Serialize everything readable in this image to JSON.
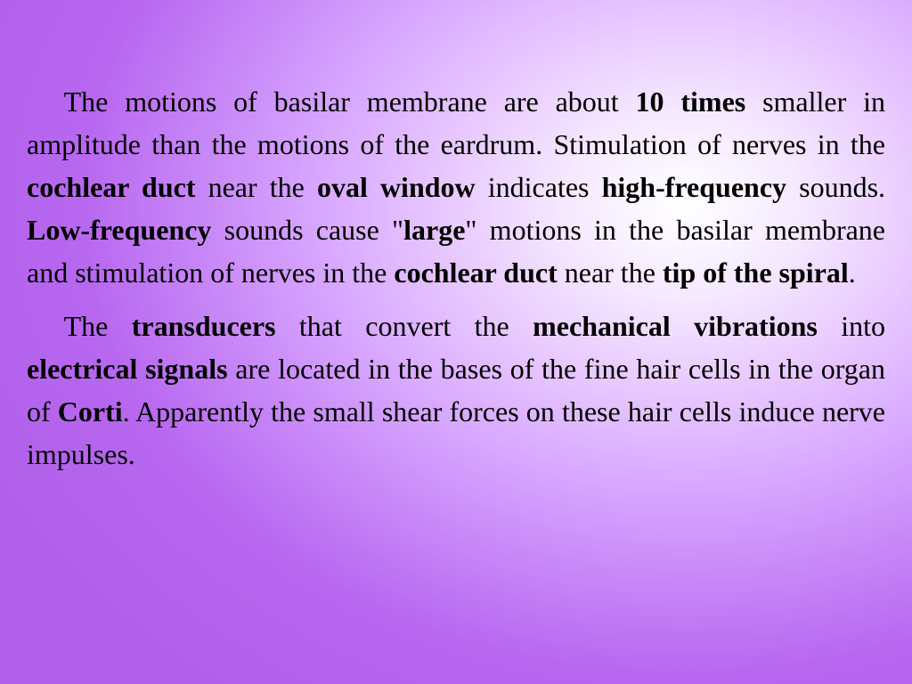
{
  "slide": {
    "background": {
      "gradient_type": "radial",
      "center_position": "75% 30%",
      "colors": [
        "#ffffff",
        "#f5e8ff",
        "#e8c8ff",
        "#d8a8ff",
        "#c888f8",
        "#b868f0",
        "#b060e8"
      ]
    },
    "typography": {
      "font_family": "Times New Roman",
      "font_size": 32,
      "line_height": 1.5,
      "text_color": "#000000",
      "text_align": "justify",
      "text_indent": "1.3em"
    },
    "paragraphs": [
      {
        "segments": [
          {
            "text": "The motions of basilar membrane are about ",
            "bold": false
          },
          {
            "text": "10 times",
            "bold": true
          },
          {
            "text": " smaller in amplitude than the motions of the eardrum. Stimulation of nerves in the ",
            "bold": false
          },
          {
            "text": "cochlear duct",
            "bold": true
          },
          {
            "text": " near the ",
            "bold": false
          },
          {
            "text": "oval window",
            "bold": true
          },
          {
            "text": " indicates ",
            "bold": false
          },
          {
            "text": "high-frequency",
            "bold": true
          },
          {
            "text": " sounds. ",
            "bold": false
          },
          {
            "text": "Low-frequency",
            "bold": true
          },
          {
            "text": " sounds cause \"",
            "bold": false
          },
          {
            "text": "large",
            "bold": true
          },
          {
            "text": "\" motions in the basilar membrane and stimulation of nerves in the ",
            "bold": false
          },
          {
            "text": "cochlear duct",
            "bold": true
          },
          {
            "text": " near the ",
            "bold": false
          },
          {
            "text": "tip of the spiral",
            "bold": true
          },
          {
            "text": ".",
            "bold": false
          }
        ]
      },
      {
        "segments": [
          {
            "text": "The ",
            "bold": false
          },
          {
            "text": "transducers",
            "bold": true
          },
          {
            "text": " that convert the ",
            "bold": false
          },
          {
            "text": "mechanical vibrations",
            "bold": true
          },
          {
            "text": " into ",
            "bold": false
          },
          {
            "text": "electrical signals",
            "bold": true
          },
          {
            "text": " are located in the bases of the fine hair cells in the organ of ",
            "bold": false
          },
          {
            "text": "Corti",
            "bold": true
          },
          {
            "text": ". Apparently the small shear forces on these hair cells induce nerve impulses.",
            "bold": false
          }
        ]
      }
    ]
  }
}
